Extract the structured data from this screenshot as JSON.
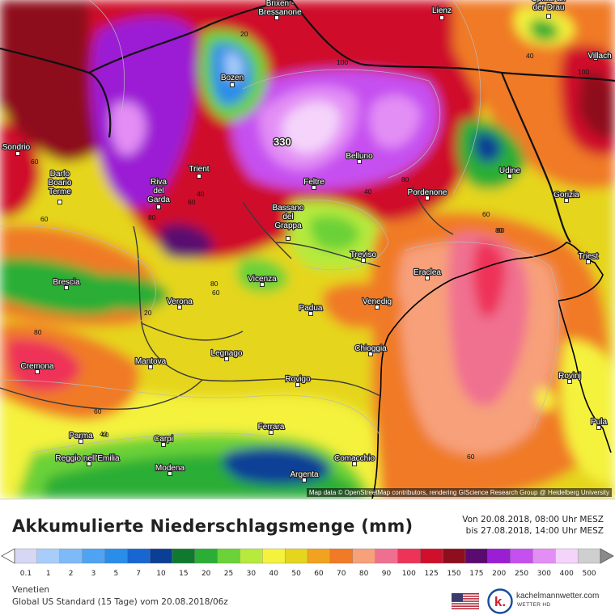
{
  "map": {
    "cities": [
      {
        "name": "Lienz"
      },
      {
        "name": "Spittal an der Drau"
      },
      {
        "name": "Villach"
      },
      {
        "name": "Brixen - Bressanone"
      },
      {
        "name": "Bozen"
      },
      {
        "name": "Sondrio"
      },
      {
        "name": "Trient"
      },
      {
        "name": "Belluno"
      },
      {
        "name": "Udine"
      },
      {
        "name": "Darfo Boario Terme"
      },
      {
        "name": "Riva del Garda"
      },
      {
        "name": "Feltre"
      },
      {
        "name": "Pordenone"
      },
      {
        "name": "Gorizia"
      },
      {
        "name": "Bassano del Grappa"
      },
      {
        "name": "Treviso"
      },
      {
        "name": "Triest"
      },
      {
        "name": "Brescia"
      },
      {
        "name": "Vicenza"
      },
      {
        "name": "Eraclea"
      },
      {
        "name": "Verona"
      },
      {
        "name": "Padua"
      },
      {
        "name": "Venedig"
      },
      {
        "name": "Legnago"
      },
      {
        "name": "Chioggia"
      },
      {
        "name": "Mantova"
      },
      {
        "name": "Cremona"
      },
      {
        "name": "Rovinj"
      },
      {
        "name": "Rovigo"
      },
      {
        "name": "Pula"
      },
      {
        "name": "Ferrara"
      },
      {
        "name": "Parma"
      },
      {
        "name": "Carpi"
      },
      {
        "name": "Comacchio"
      },
      {
        "name": "Reggio nell'Emilia"
      },
      {
        "name": "Modena"
      },
      {
        "name": "Argenta"
      }
    ],
    "contour_labels": [
      "40",
      "20",
      "60",
      "100",
      "40",
      "40",
      "80",
      "40",
      "60",
      "80",
      "40",
      "60",
      "80",
      "80",
      "60",
      "80",
      "20",
      "80",
      "60",
      "40",
      "60",
      "60",
      "100"
    ],
    "peak_label": "330",
    "attribution": "Map data © OpenStreetMap contributors, rendering GIScience Research Group @ Heidelberg University"
  },
  "footer": {
    "title": "Akkumulierte Niederschlagsmenge (mm)",
    "period_from": "Von 20.08.2018, 08:00 Uhr MESZ",
    "period_to": "bis 27.08.2018, 14:00 Uhr MESZ",
    "region": "Venetien",
    "model": "Global US Standard (15 Tage) vom 20.08.2018/06z",
    "logo_name": "kachelmannwetter.com",
    "logo_sub": "WETTER HD",
    "logo_icon": "k-icon",
    "flag_icon": "us-flag-icon"
  },
  "legend": {
    "ticks": [
      "0.1",
      "1",
      "2",
      "3",
      "5",
      "7",
      "10",
      "15",
      "20",
      "25",
      "30",
      "40",
      "50",
      "60",
      "70",
      "80",
      "90",
      "100",
      "125",
      "150",
      "175",
      "200",
      "250",
      "300",
      "400",
      "500"
    ],
    "colors": [
      "#d6d6f5",
      "#a9cdfa",
      "#7fbaf8",
      "#4ea4f3",
      "#2a8de9",
      "#1766d2",
      "#0b3f96",
      "#0f7a2d",
      "#2cae36",
      "#6bd239",
      "#b6ea3c",
      "#f4f23d",
      "#e5d51e",
      "#f1a21e",
      "#f07a25",
      "#f7a07a",
      "#f06f90",
      "#ee3358",
      "#cf0f2c",
      "#8e0e1e",
      "#5a0b6f",
      "#9b1ed4",
      "#c64ff0",
      "#e38ef5",
      "#f4d4fa",
      "#cfcfcf"
    ]
  }
}
